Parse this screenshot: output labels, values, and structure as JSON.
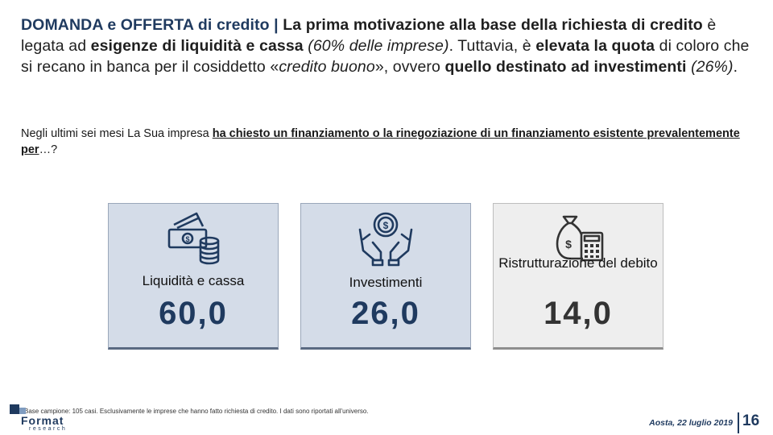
{
  "headline": {
    "part1": "DOMANDA e OFFERTA di credito | ",
    "part2": "La prima motivazione alla base della richiesta di credito",
    "part3": " è legata ad ",
    "part4": "esigenze di liquidità e cassa",
    "part5": " (60% delle imprese)",
    "part6": ". Tuttavia, è ",
    "part7": "elevata la quota",
    "part8": " di coloro che si recano in banca per il cosiddetto «",
    "part9": "credito buono",
    "part10": "», ovvero ",
    "part11": "quello destinato ad investimenti",
    "part12": " (26%)",
    "part13": "."
  },
  "question": {
    "prefix": "Negli ultimi sei mesi La Sua impresa ",
    "underlined": "ha chiesto un finanziamento o la rinegoziazione di un finanziamento esistente prevalentemente per",
    "suffix": "…?"
  },
  "cards": [
    {
      "label": "Liquidità e cassa",
      "value": "60,0",
      "icon": "cash-coins-icon",
      "color": "#d4dce8"
    },
    {
      "label": "Investimenti",
      "value": "26,0",
      "icon": "hands-coin-icon",
      "color": "#d4dce8"
    },
    {
      "label": "Ristrutturazione del debito",
      "value": "14,0",
      "icon": "money-bag-calculator-icon",
      "color": "#eeeeee"
    }
  ],
  "footer": {
    "note": "Base campione: 105 casi. Esclusivamente le imprese che hanno fatto richiesta di credito. I dati sono riportati all'universo.",
    "logo_word": "Format",
    "logo_sub": "research",
    "place_date": "Aosta, 22 luglio 2019",
    "page_number": "16"
  }
}
